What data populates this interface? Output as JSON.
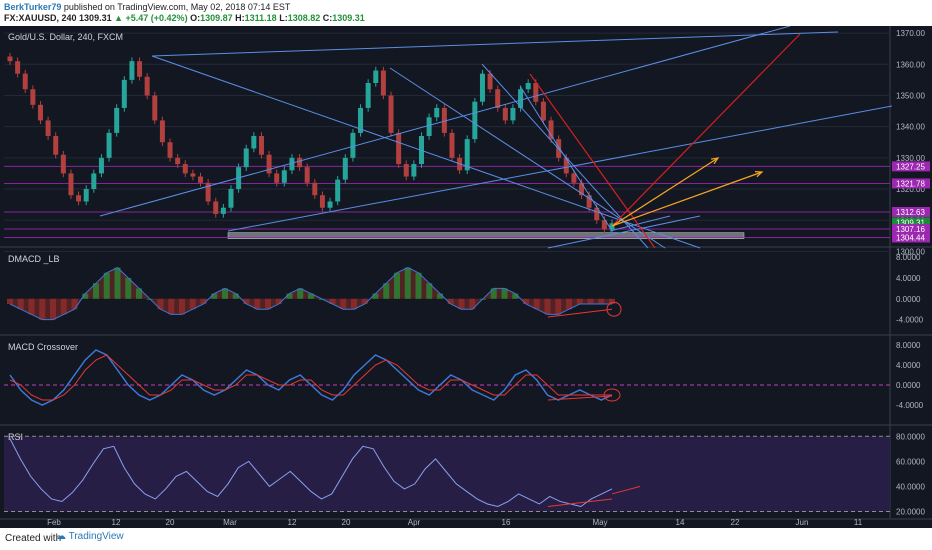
{
  "header": {
    "author": "BerkTurker79",
    "published": "published on TradingView.com, May 02, 2018 07:14 EST",
    "symbol": "FX:XAUUSD, 240",
    "last": "1309.31",
    "change": "▲ +5.47 (+0.42%)",
    "ohlc_o_label": "O:",
    "ohlc_o": "1309.87",
    "ohlc_h_label": "H:",
    "ohlc_h": "1311.18",
    "ohlc_l_label": "L:",
    "ohlc_l": "1308.82",
    "ohlc_c_label": "C:",
    "ohlc_c": "1309.31"
  },
  "footer": {
    "created_with": "Created with",
    "brand": "TradingView"
  },
  "colors": {
    "background": "#131722",
    "up": "#26a69a",
    "down": "#b2403f",
    "trendline": "#5b8ee6",
    "red_line": "#d42020",
    "orange_line": "#f5a623",
    "level_line": "#9c27b0",
    "rsi_line": "#8aa0f0",
    "macd_blue": "#3c78d8",
    "macd_red": "#e53935"
  },
  "chart_data": [
    {
      "type": "candlestick",
      "title": "Gold/U.S. Dollar, 240, FXCM",
      "price_ticks": [
        1300.0,
        1310.0,
        1320.0,
        1330.0,
        1340.0,
        1350.0,
        1360.0,
        1370.0
      ],
      "price_labels": [
        "1370.00",
        "1360.00",
        "1350.00",
        "1340.00",
        "1330.00",
        "1320.00",
        "1310.00",
        "1300.00"
      ],
      "ylim": [
        1303,
        1371
      ],
      "x_tick_labels": [
        "Feb",
        "12",
        "20",
        "Mar",
        "12",
        "20",
        "Apr",
        "16",
        "May",
        "14",
        "22",
        "Jun",
        "11"
      ],
      "level_markers": [
        {
          "label": "1327.25",
          "value": 1327.25
        },
        {
          "label": "1321.78",
          "value": 1321.78
        },
        {
          "label": "1312.63",
          "value": 1312.63
        },
        {
          "label": "1309.31",
          "value": 1309.31
        },
        {
          "label": "45:33",
          "value": 1306.9
        },
        {
          "label": "1307.16",
          "value": 1307.16
        },
        {
          "label": "1304.44",
          "value": 1304.44
        }
      ],
      "support_zone": [
        1304.4,
        1306.0
      ],
      "close_path": [
        1361,
        1357,
        1352,
        1347,
        1342,
        1337,
        1331,
        1325,
        1318,
        1316,
        1320,
        1325,
        1330,
        1338,
        1346,
        1355,
        1361,
        1356,
        1350,
        1342,
        1335,
        1330,
        1328,
        1325,
        1324,
        1322,
        1316,
        1312,
        1314,
        1320,
        1327,
        1333,
        1337,
        1331,
        1325,
        1322,
        1326,
        1330,
        1327,
        1322,
        1318,
        1314,
        1316,
        1323,
        1330,
        1338,
        1346,
        1354,
        1358,
        1350,
        1338,
        1328,
        1324,
        1328,
        1337,
        1343,
        1346,
        1338,
        1330,
        1326,
        1336,
        1348,
        1357,
        1352,
        1346,
        1342,
        1346,
        1352,
        1354,
        1348,
        1342,
        1336,
        1330,
        1325,
        1322,
        1318,
        1314,
        1310,
        1307,
        1309
      ]
    },
    {
      "type": "histogram",
      "title": "DMACD _LB",
      "y_ticks": [
        "8.0000",
        "4.0000",
        "0.0000",
        "-4.0000"
      ],
      "ylim": [
        -6,
        9
      ],
      "values": [
        -1,
        -2,
        -3,
        -4,
        -4,
        -3,
        -2,
        1,
        3,
        5,
        6,
        4,
        2,
        0,
        -2,
        -3,
        -3,
        -2,
        -1,
        1,
        2,
        1,
        -1,
        -2,
        -2,
        -1,
        1,
        2,
        1,
        0,
        -1,
        -2,
        -2,
        -1,
        1,
        3,
        5,
        6,
        5,
        3,
        1,
        -1,
        -2,
        -2,
        0,
        2,
        2,
        1,
        -1,
        -2,
        -3,
        -3,
        -2,
        -1,
        -1,
        -1,
        -1
      ]
    },
    {
      "type": "line",
      "title": "MACD Crossover",
      "y_ticks": [
        "8.0000",
        "4.0000",
        "0.0000",
        "-4.0000"
      ],
      "ylim": [
        -7,
        9
      ],
      "series": [
        {
          "values": [
            2,
            -1,
            -3,
            -4,
            -3,
            -1,
            2,
            5,
            7,
            6,
            3,
            0,
            -2,
            -3,
            -2,
            0,
            2,
            1,
            -1,
            -2,
            -1,
            1,
            3,
            2,
            0,
            -1,
            1,
            2,
            0,
            -2,
            -3,
            -1,
            2,
            4,
            6,
            5,
            3,
            1,
            -1,
            -2,
            0,
            2,
            1,
            -1,
            -2,
            -3,
            -1,
            2,
            3,
            1,
            -2,
            -3,
            -2,
            -1,
            -2,
            -3,
            -2
          ]
        },
        {
          "values": [
            1,
            0,
            -2,
            -3,
            -3,
            -2,
            0,
            3,
            5,
            6,
            4,
            2,
            0,
            -2,
            -2,
            -1,
            1,
            1,
            0,
            -1,
            -1,
            0,
            2,
            2,
            1,
            0,
            0,
            1,
            1,
            -1,
            -2,
            -2,
            0,
            2,
            4,
            5,
            4,
            2,
            0,
            -1,
            -1,
            1,
            1,
            0,
            -1,
            -2,
            -2,
            0,
            2,
            2,
            0,
            -2,
            -2,
            -2,
            -2,
            -2,
            -2
          ]
        }
      ]
    },
    {
      "type": "line",
      "title": "RSI",
      "y_ticks": [
        "80.0000",
        "60.0000",
        "40.0000",
        "20.0000"
      ],
      "ylim": [
        18,
        85
      ],
      "series": [
        {
          "values": [
            78,
            62,
            48,
            38,
            30,
            28,
            35,
            45,
            58,
            70,
            72,
            55,
            42,
            34,
            30,
            38,
            48,
            52,
            44,
            36,
            32,
            42,
            55,
            60,
            50,
            40,
            46,
            52,
            44,
            36,
            30,
            34,
            48,
            62,
            72,
            70,
            56,
            44,
            38,
            42,
            54,
            62,
            52,
            42,
            36,
            30,
            26,
            24,
            28,
            34,
            30,
            26,
            32,
            28,
            26,
            24,
            30,
            34,
            38
          ]
        }
      ]
    }
  ]
}
